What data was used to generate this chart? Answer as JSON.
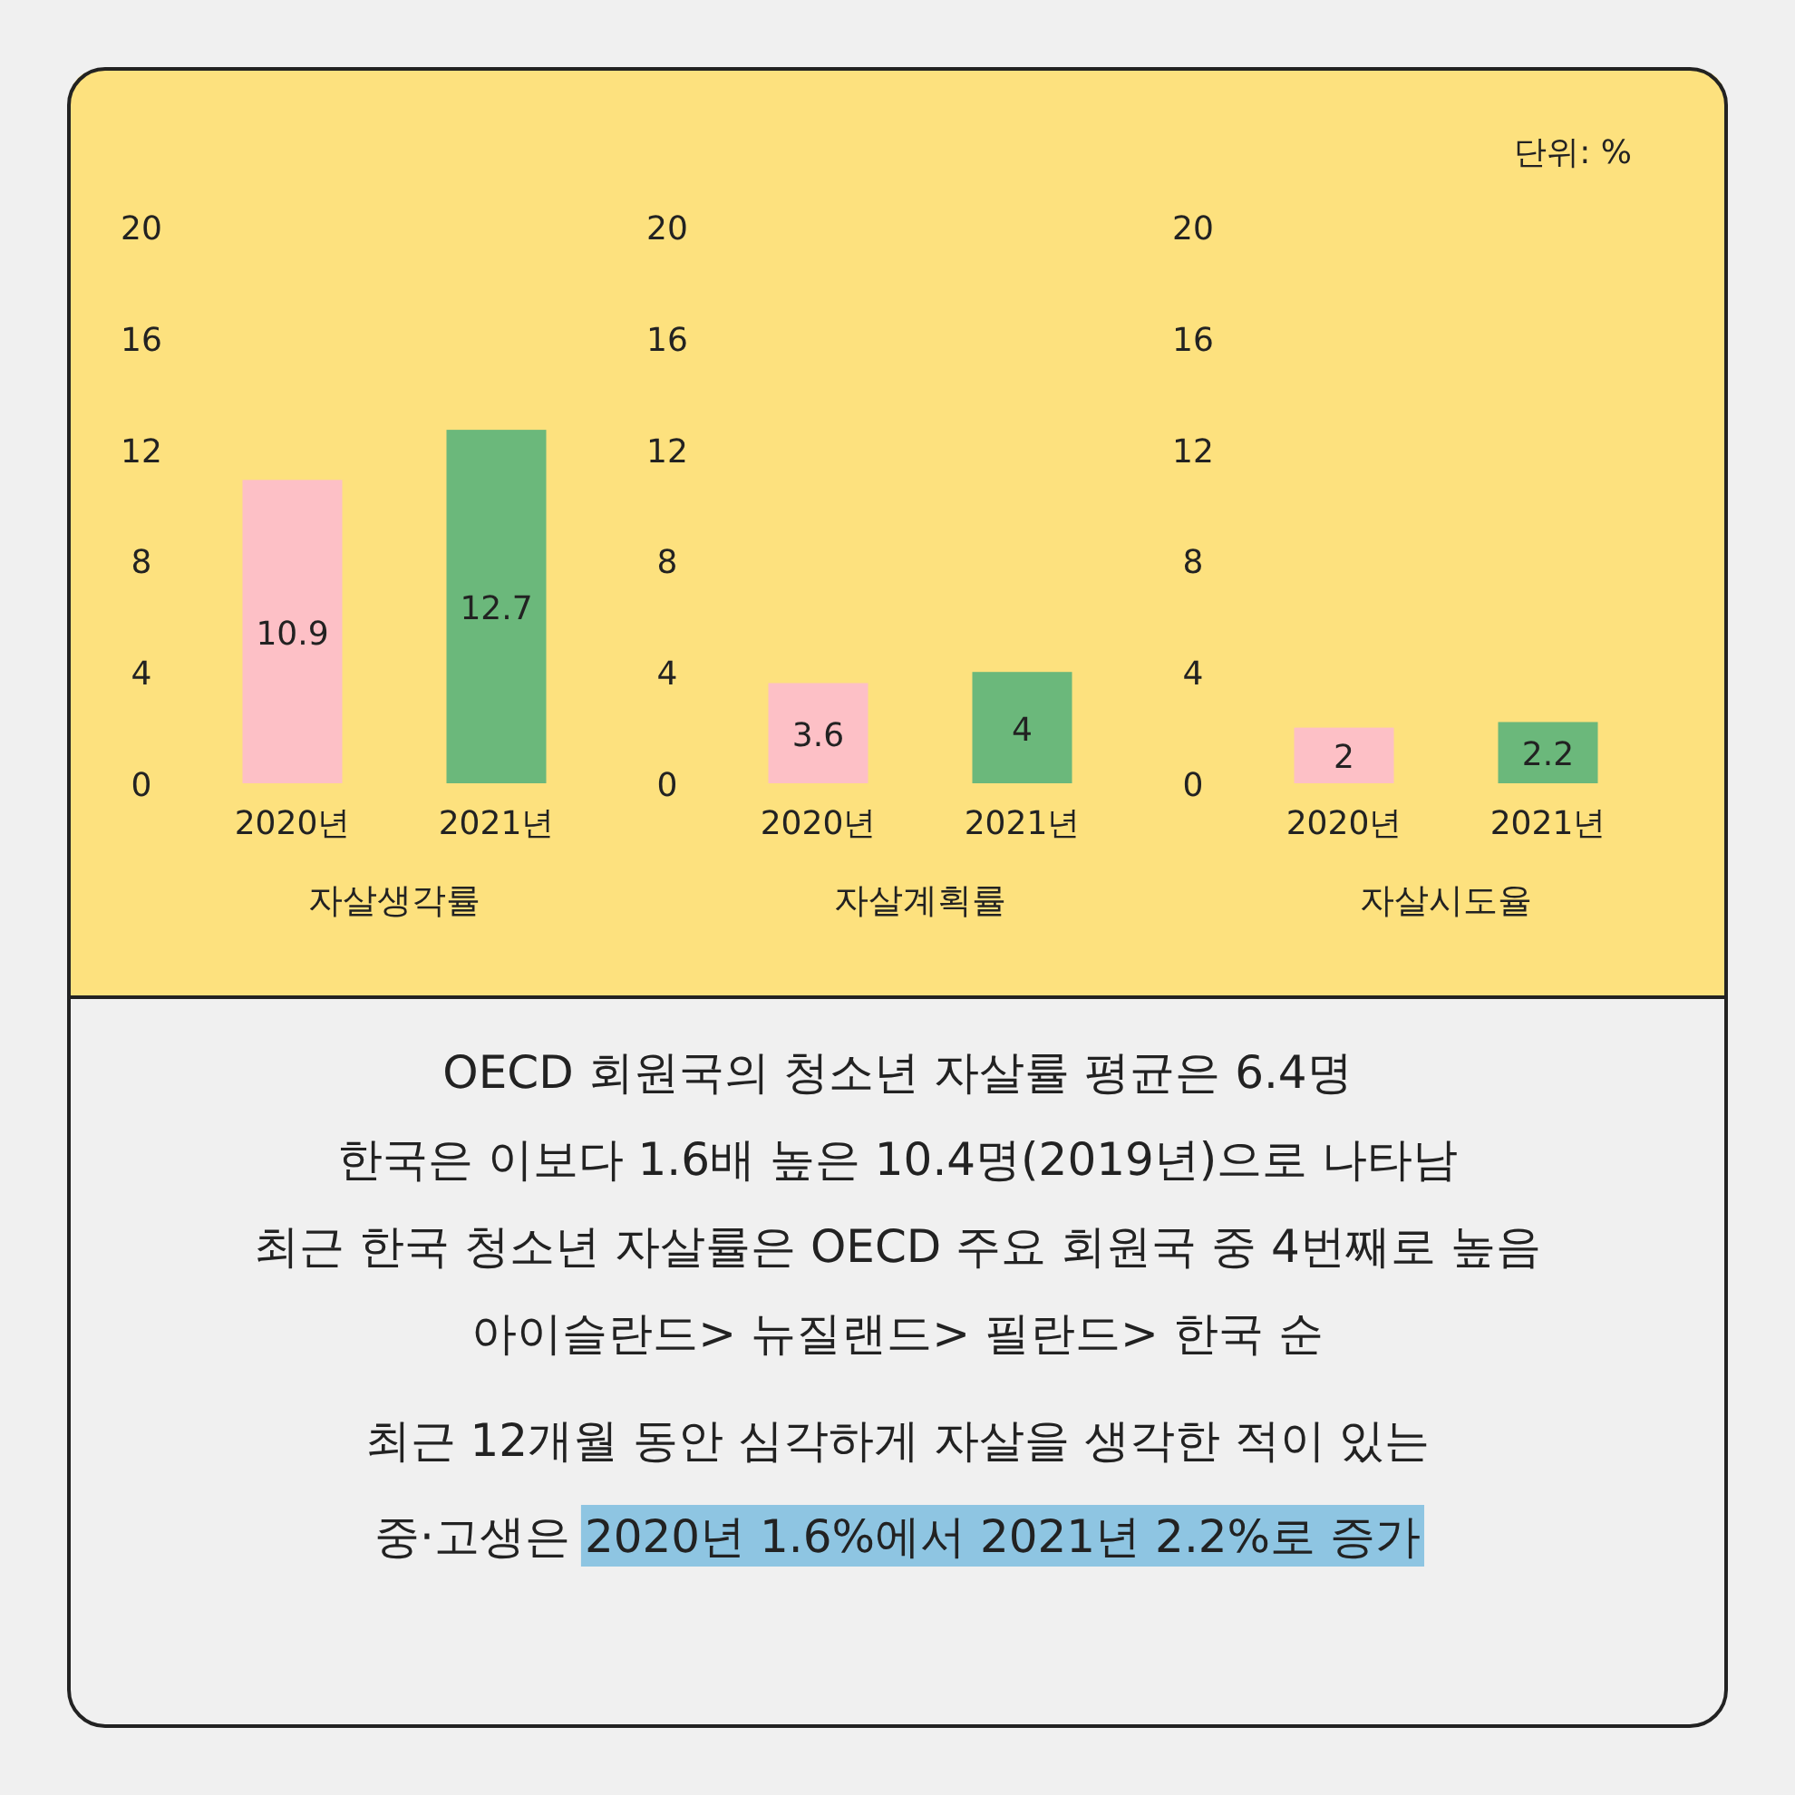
{
  "chart_data": [
    {
      "type": "bar",
      "categories": [
        "2020년",
        "2021년"
      ],
      "values": [
        10.9,
        12.7
      ],
      "colors": [
        "#fdc0c6",
        "#6bb87b"
      ],
      "ylim": [
        0,
        20
      ],
      "yticks": [
        0,
        4,
        8,
        12,
        16,
        20
      ],
      "xlabel": "자살생각률",
      "data_labels": true
    },
    {
      "type": "bar",
      "categories": [
        "2020년",
        "2021년"
      ],
      "values": [
        3.6,
        4
      ],
      "colors": [
        "#fdc0c6",
        "#6bb87b"
      ],
      "ylim": [
        0,
        20
      ],
      "yticks": [
        0,
        4,
        8,
        12,
        16,
        20
      ],
      "xlabel": "자살계획률",
      "data_labels": true
    },
    {
      "type": "bar",
      "categories": [
        "2020년",
        "2021년"
      ],
      "values": [
        2,
        2.2
      ],
      "colors": [
        "#fdc0c6",
        "#6bb87b"
      ],
      "ylim": [
        0,
        20
      ],
      "yticks": [
        0,
        4,
        8,
        12,
        16,
        20
      ],
      "xlabel": "자살시도율",
      "data_labels": true,
      "annotations": [
        "단위: %"
      ]
    },
    {
      "type": "other",
      "annotations": [
        "OECD 회원국의 청소년 자살률 평균은 6.4명",
        "한국은 이보다 1.6배 높은 10.4명(2019년)으로 나타남",
        "최근 한국 청소년 자살률은 OECD 주요 회원국 중 4번째로 높음",
        "아이슬란드> 뉴질랜드> 필란드> 한국 순",
        "최근 12개월 동안 심각하게 자살을 생각한 적이 있는",
        "중·고생은",
        "2020년 1.6%에서 2021년 2.2%로 증가"
      ]
    }
  ]
}
